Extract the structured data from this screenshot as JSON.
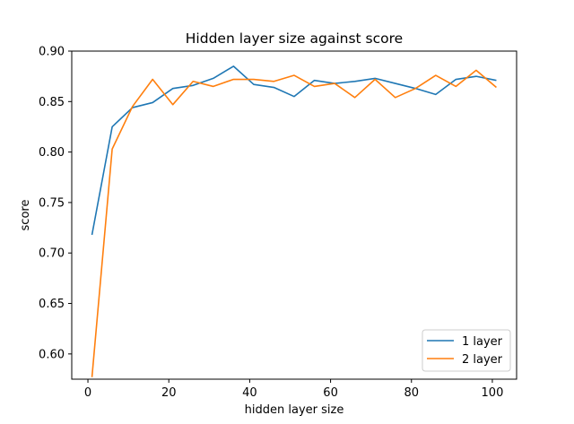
{
  "chart_data": {
    "type": "line",
    "title": "Hidden layer size against score",
    "xlabel": "hidden layer size",
    "ylabel": "score",
    "xlim": [
      -4,
      106
    ],
    "ylim": [
      0.575,
      0.9
    ],
    "xticks": [
      "0",
      "20",
      "40",
      "60",
      "80",
      "100"
    ],
    "yticks": [
      "0.60",
      "0.65",
      "0.70",
      "0.75",
      "0.80",
      "0.85",
      "0.90"
    ],
    "grid": false,
    "legend_position": "lower-right",
    "x": [
      1,
      6,
      11,
      16,
      21,
      26,
      31,
      36,
      41,
      46,
      51,
      56,
      61,
      66,
      71,
      76,
      81,
      86,
      91,
      96,
      101
    ],
    "series": [
      {
        "name": "1 layer",
        "color": "#1f77b4",
        "values": [
          0.718,
          0.825,
          0.844,
          0.849,
          0.863,
          0.866,
          0.873,
          0.885,
          0.867,
          0.864,
          0.855,
          0.871,
          0.868,
          0.87,
          0.873,
          0.868,
          0.863,
          0.857,
          0.872,
          0.875,
          0.871
        ]
      },
      {
        "name": "2 layer",
        "color": "#ff7f0e",
        "values": [
          0.577,
          0.803,
          0.845,
          0.872,
          0.847,
          0.87,
          0.865,
          0.872,
          0.872,
          0.87,
          0.876,
          0.865,
          0.868,
          0.854,
          0.872,
          0.854,
          0.863,
          0.876,
          0.865,
          0.881,
          0.864
        ]
      }
    ]
  }
}
